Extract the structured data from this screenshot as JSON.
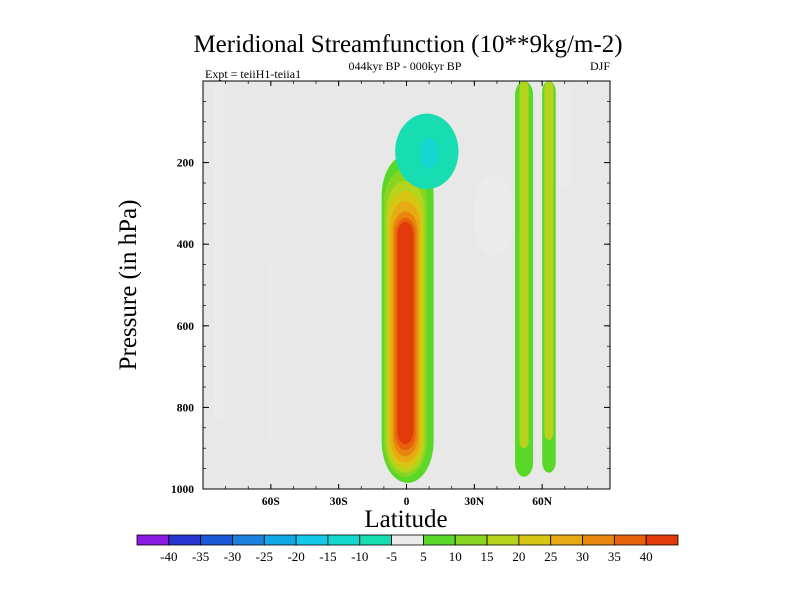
{
  "chart_data": {
    "type": "heatmap",
    "title": "Meridional Streamfunction (10**9kg/m-2)",
    "expt_label": "Expt = teiiH1-teiia1",
    "period_label": "044kyr BP - 000kyr BP",
    "season_label": "DJF",
    "xlabel": "Latitude",
    "ylabel": "Pressure (in hPa)",
    "xlim": [
      -90,
      90
    ],
    "ylim": [
      1000,
      0
    ],
    "y_reversed": true,
    "x_ticks": [
      {
        "value": -60,
        "label": "60S"
      },
      {
        "value": -30,
        "label": "30S"
      },
      {
        "value": 0,
        "label": "0"
      },
      {
        "value": 30,
        "label": "30N"
      },
      {
        "value": 60,
        "label": "60N"
      }
    ],
    "y_ticks": [
      {
        "value": 200,
        "label": "200"
      },
      {
        "value": 400,
        "label": "400"
      },
      {
        "value": 600,
        "label": "600"
      },
      {
        "value": 800,
        "label": "800"
      },
      {
        "value": 1000,
        "label": "1000"
      }
    ],
    "background_color": "#e8e8e8",
    "colorbar": {
      "levels": [
        -45,
        -40,
        -35,
        -30,
        -25,
        -20,
        -15,
        -10,
        -5,
        5,
        10,
        15,
        20,
        25,
        30,
        35,
        40,
        45
      ],
      "tick_labels": [
        "-40",
        "-35",
        "-30",
        "-25",
        "-20",
        "-15",
        "-10",
        "-5",
        "5",
        "10",
        "15",
        "20",
        "25",
        "30",
        "35",
        "40"
      ],
      "colors": [
        "#8a1be0",
        "#2a34d0",
        "#1a5ad8",
        "#1a82de",
        "#10a8e6",
        "#12c8e8",
        "#14d8d0",
        "#18dcb2",
        "#ebebeb",
        "#5ad82a",
        "#88d622",
        "#b6d41c",
        "#d8c614",
        "#e8aa12",
        "#e8860e",
        "#e8620c",
        "#e23a0a"
      ]
    },
    "contour_features": [
      {
        "name": "tropical-cell-outer",
        "value": 5,
        "lat_range": [
          -11,
          12
        ],
        "p_range": [
          180,
          985
        ]
      },
      {
        "name": "tropical-cell-10",
        "value": 10,
        "lat_range": [
          -10,
          9
        ],
        "p_range": [
          215,
          970
        ]
      },
      {
        "name": "tropical-cell-15",
        "value": 15,
        "lat_range": [
          -9,
          8
        ],
        "p_range": [
          245,
          960
        ]
      },
      {
        "name": "tropical-cell-20",
        "value": 20,
        "lat_range": [
          -8,
          7
        ],
        "p_range": [
          270,
          948
        ]
      },
      {
        "name": "tropical-cell-25",
        "value": 25,
        "lat_range": [
          -7,
          6
        ],
        "p_range": [
          295,
          935
        ]
      },
      {
        "name": "tropical-cell-30",
        "value": 30,
        "lat_range": [
          -6,
          5
        ],
        "p_range": [
          320,
          920
        ]
      },
      {
        "name": "tropical-cell-35",
        "value": 35,
        "lat_range": [
          -5,
          4
        ],
        "p_range": [
          335,
          905
        ]
      },
      {
        "name": "tropical-cell-core",
        "value": 40,
        "lat_range": [
          -4,
          3
        ],
        "p_range": [
          345,
          890
        ]
      },
      {
        "name": "upper-negative-cell",
        "value": -10,
        "lat_range": [
          -5,
          23
        ],
        "p_range": [
          80,
          265
        ]
      },
      {
        "name": "upper-negative-core",
        "value": -15,
        "lat_range": [
          6,
          14
        ],
        "p_range": [
          140,
          215
        ]
      },
      {
        "name": "southern-strip-west",
        "value": -5,
        "lat_range": [
          -85,
          -81
        ],
        "p_range": [
          0,
          830
        ]
      },
      {
        "name": "southern-strip-east",
        "value": -5,
        "lat_range": [
          -61,
          -59
        ],
        "p_range": [
          440,
          880
        ]
      },
      {
        "name": "northern-ribbons-neg",
        "value": -5,
        "lat_range": [
          30,
          47
        ],
        "p_range": [
          230,
          430
        ]
      },
      {
        "name": "northern-band-east",
        "value": -5,
        "lat_range": [
          67,
          73
        ],
        "p_range": [
          0,
          260
        ]
      },
      {
        "name": "midlatitude-positive-band",
        "value": 5,
        "lat_range": [
          48,
          56
        ],
        "p_range": [
          0,
          970
        ]
      },
      {
        "name": "midlatitude-positive-core",
        "value": 15,
        "lat_range": [
          50,
          54
        ],
        "p_range": [
          0,
          900
        ]
      },
      {
        "name": "polar-positive-band",
        "value": 5,
        "lat_range": [
          60,
          66
        ],
        "p_range": [
          0,
          960
        ]
      },
      {
        "name": "polar-positive-core",
        "value": 15,
        "lat_range": [
          61,
          65
        ],
        "p_range": [
          0,
          880
        ]
      }
    ]
  }
}
